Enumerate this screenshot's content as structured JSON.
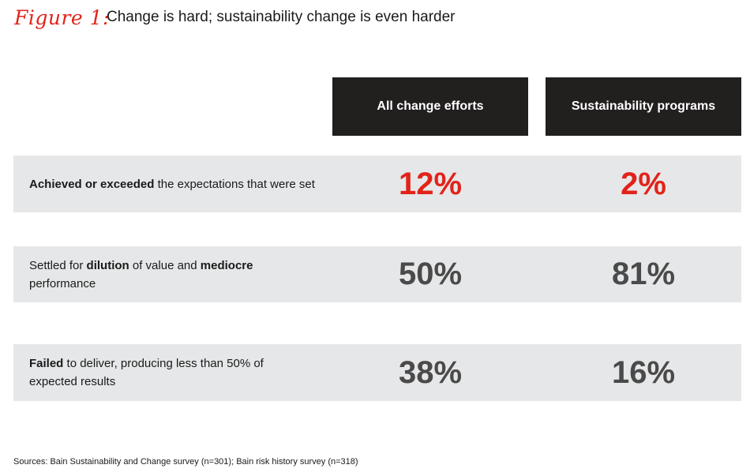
{
  "figure": {
    "label": "Figure 1:",
    "title": "Change is hard; sustainability change is even harder"
  },
  "colors": {
    "accent": "#e2231a",
    "header_bg": "#221f1f",
    "row_bg": "#e6e7e8",
    "value_gray": "#4a4a4a"
  },
  "chart_data": {
    "type": "table",
    "columns": [
      "All change efforts",
      "Sustainability programs"
    ],
    "rows": [
      {
        "label_parts": [
          {
            "text": "Achieved or exceeded",
            "bold": true
          },
          {
            "text": " the expectations that were set",
            "bold": false
          }
        ],
        "values": [
          "12%",
          "2%"
        ],
        "highlight": true
      },
      {
        "label_parts": [
          {
            "text": "Settled for ",
            "bold": false
          },
          {
            "text": "dilution",
            "bold": true
          },
          {
            "text": " of value and ",
            "bold": false
          },
          {
            "text": "mediocre",
            "bold": true
          },
          {
            "text": " performance",
            "bold": false
          }
        ],
        "values": [
          "50%",
          "81%"
        ],
        "highlight": false
      },
      {
        "label_parts": [
          {
            "text": "Failed",
            "bold": true
          },
          {
            "text": " to deliver, producing less than 50% of expected results",
            "bold": false
          }
        ],
        "values": [
          "38%",
          "16%"
        ],
        "highlight": false
      }
    ]
  },
  "source": "Sources: Bain Sustainability and Change survey (n=301); Bain risk history survey (n=318)"
}
